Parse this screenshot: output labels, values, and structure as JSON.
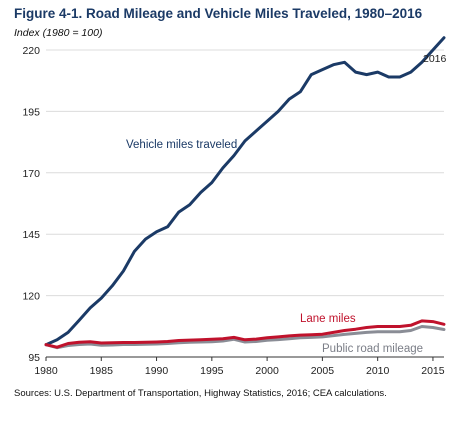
{
  "chart_data": {
    "type": "line",
    "title": "Figure 4-1. Road Mileage and Vehicle Miles Traveled, 1980–2016",
    "subtitle": "Index (1980 = 100)",
    "source": "Sources: U.S. Department of Transportation, Highway Statistics, 2016; CEA calculations.",
    "xlim": [
      1980,
      2016
    ],
    "ylim": [
      95,
      220
    ],
    "x_ticks": [
      1980,
      1985,
      1990,
      1995,
      2000,
      2005,
      2010,
      2015
    ],
    "y_ticks": [
      95,
      120,
      145,
      170,
      195,
      220
    ],
    "x": [
      1980,
      1981,
      1982,
      1983,
      1984,
      1985,
      1986,
      1987,
      1988,
      1989,
      1990,
      1991,
      1992,
      1993,
      1994,
      1995,
      1996,
      1997,
      1998,
      1999,
      2000,
      2001,
      2002,
      2003,
      2004,
      2005,
      2006,
      2007,
      2008,
      2009,
      2010,
      2011,
      2012,
      2013,
      2014,
      2015,
      2016
    ],
    "series": [
      {
        "name": "Vehicle miles traveled",
        "color": "#1b3a66",
        "values": [
          100,
          102,
          105,
          110,
          115,
          119,
          124,
          130,
          138,
          143,
          146,
          148,
          154,
          157,
          162,
          166,
          172,
          177,
          183,
          187,
          191,
          195,
          200,
          203,
          210,
          212,
          214,
          215,
          211,
          210,
          211,
          209,
          209,
          211,
          215,
          220,
          225
        ]
      },
      {
        "name": "Lane miles",
        "color": "#c0122c",
        "values": [
          100,
          99,
          100.5,
          101,
          101.2,
          100.7,
          100.8,
          100.9,
          100.9,
          101,
          101.1,
          101.3,
          101.7,
          101.9,
          102,
          102.2,
          102.4,
          103,
          102,
          102.3,
          102.8,
          103.2,
          103.6,
          103.9,
          104.1,
          104.3,
          105,
          105.8,
          106.3,
          107,
          107.4,
          107.4,
          107.4,
          107.9,
          109.7,
          109.4,
          108.3
        ]
      },
      {
        "name": "Public road mileage",
        "color": "#8a8d96",
        "values": [
          100,
          98.8,
          99.7,
          100.1,
          100.3,
          99.8,
          99.9,
          100.1,
          100.1,
          100.2,
          100.3,
          100.5,
          100.8,
          101,
          101.1,
          101.2,
          101.5,
          102.2,
          101.1,
          101.3,
          101.8,
          102.1,
          102.4,
          102.8,
          103,
          103.2,
          103.7,
          104.2,
          104.6,
          105,
          105.3,
          105.3,
          105.3,
          105.8,
          107.4,
          107,
          106.2
        ]
      }
    ],
    "annotations": {
      "end_year": "2016"
    }
  }
}
